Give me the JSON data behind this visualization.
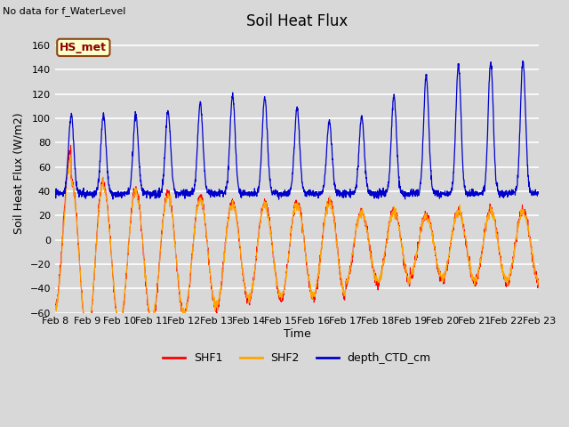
{
  "title": "Soil Heat Flux",
  "ylabel": "Soil Heat Flux (W/m2)",
  "xlabel": "Time",
  "top_left_text": "No data for f_WaterLevel",
  "box_label": "HS_met",
  "ylim": [
    -60,
    170
  ],
  "yticks": [
    -60,
    -40,
    -20,
    0,
    20,
    40,
    60,
    80,
    100,
    120,
    140,
    160
  ],
  "xtick_labels": [
    "Feb 8",
    "Feb 9",
    "Feb 10",
    "Feb 11",
    "Feb 12",
    "Feb 13",
    "Feb 14",
    "Feb 15",
    "Feb 16",
    "Feb 17",
    "Feb 18",
    "Feb 19",
    "Feb 20",
    "Feb 21",
    "Feb 22",
    "Feb 23"
  ],
  "colors": {
    "SHF1": "#ff0000",
    "SHF2": "#ffa500",
    "depth_CTD_cm": "#0000cd"
  },
  "background_color": "#d8d8d8",
  "plot_bg_color": "#d8d8d8",
  "grid_color": "#ffffff",
  "n_days": 15,
  "points_per_day": 144
}
